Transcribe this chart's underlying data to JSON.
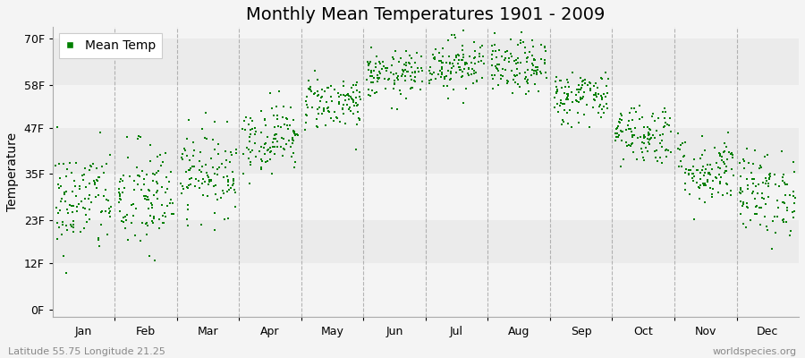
{
  "title": "Monthly Mean Temperatures 1901 - 2009",
  "ylabel": "Temperature",
  "subtitle_left": "Latitude 55.75 Longitude 21.25",
  "subtitle_right": "worldspecies.org",
  "legend_label": "Mean Temp",
  "years": 109,
  "monthly_means_F": [
    28.0,
    28.5,
    35.5,
    44.5,
    53.5,
    60.5,
    63.5,
    62.5,
    55.0,
    45.5,
    36.0,
    30.0
  ],
  "monthly_stds_F": [
    7.0,
    7.5,
    5.5,
    4.5,
    3.5,
    3.0,
    3.5,
    3.5,
    3.5,
    4.0,
    4.5,
    5.5
  ],
  "yticks_vals": [
    0,
    12,
    23,
    35,
    47,
    58,
    70
  ],
  "ytick_labels": [
    "0F",
    "12F",
    "23F",
    "35F",
    "47F",
    "58F",
    "70F"
  ],
  "ylim": [
    -2,
    73
  ],
  "month_names": [
    "Jan",
    "Feb",
    "Mar",
    "Apr",
    "May",
    "Jun",
    "Jul",
    "Aug",
    "Sep",
    "Oct",
    "Nov",
    "Dec"
  ],
  "marker_color": "#008000",
  "marker_size": 4,
  "bg_color": "#f4f4f4",
  "stripe_colors": [
    "#f4f4f4",
    "#ebebeb"
  ],
  "vline_color": "#999999",
  "title_fontsize": 14,
  "label_fontsize": 10,
  "tick_fontsize": 9,
  "sub_fontsize": 8
}
